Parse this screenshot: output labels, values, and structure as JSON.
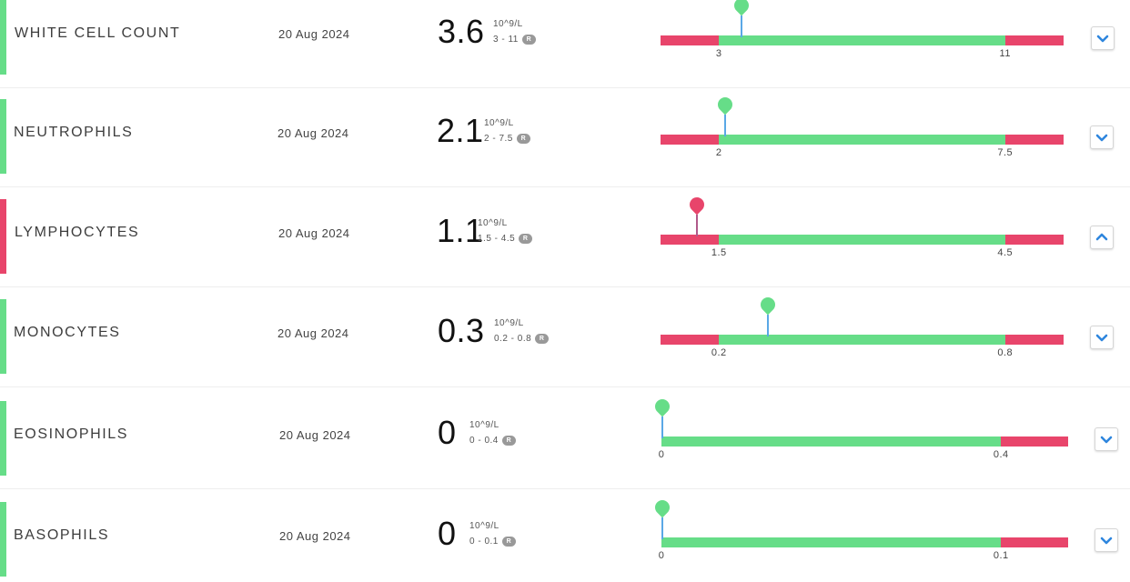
{
  "colors": {
    "normal": "#66dd88",
    "abnormal": "#e8456b",
    "pin_line": "#5aa8e6",
    "chevron": "#2e86de"
  },
  "results": [
    {
      "name": "WHITE CELL COUNT",
      "date": "20 Aug 2024",
      "value": "3.6",
      "unit": "10^9/L",
      "range": "3 - 11",
      "badge": "R",
      "status": "normal",
      "low": "3",
      "high": "11",
      "low_num": 3,
      "high_num": 11,
      "value_num": 3.6,
      "expanded": false,
      "chevron_icon": "chevron-down-icon"
    },
    {
      "name": "NEUTROPHILS",
      "date": "20 Aug 2024",
      "value": "2.1",
      "unit": "10^9/L",
      "range": "2 - 7.5",
      "badge": "R",
      "status": "normal",
      "low": "2",
      "high": "7.5",
      "low_num": 2,
      "high_num": 7.5,
      "value_num": 2.1,
      "expanded": false,
      "chevron_icon": "chevron-down-icon"
    },
    {
      "name": "LYMPHOCYTES",
      "date": "20 Aug 2024",
      "value": "1.1",
      "unit": "10^9/L",
      "range": "1.5 - 4.5",
      "badge": "R",
      "status": "abnormal",
      "low": "1.5",
      "high": "4.5",
      "low_num": 1.5,
      "high_num": 4.5,
      "value_num": 1.1,
      "expanded": true,
      "chevron_icon": "chevron-up-icon"
    },
    {
      "name": "MONOCYTES",
      "date": "20 Aug 2024",
      "value": "0.3",
      "unit": "10^9/L",
      "range": "0.2 - 0.8",
      "badge": "R",
      "status": "normal",
      "low": "0.2",
      "high": "0.8",
      "low_num": 0.2,
      "high_num": 0.8,
      "value_num": 0.3,
      "expanded": false,
      "chevron_icon": "chevron-down-icon"
    },
    {
      "name": "EOSINOPHILS",
      "date": "20 Aug 2024",
      "value": "0",
      "unit": "10^9/L",
      "range": "0 - 0.4",
      "badge": "R",
      "status": "normal",
      "low": "0",
      "high": "0.4",
      "low_num": 0,
      "high_num": 0.4,
      "value_num": 0,
      "expanded": false,
      "chevron_icon": "chevron-down-icon"
    },
    {
      "name": "BASOPHILS",
      "date": "20 Aug 2024",
      "value": "0",
      "unit": "10^9/L",
      "range": "0 - 0.1",
      "badge": "R",
      "status": "normal",
      "low": "0",
      "high": "0.1",
      "low_num": 0,
      "high_num": 0.1,
      "value_num": 0,
      "expanded": false,
      "chevron_icon": "chevron-down-icon"
    }
  ]
}
